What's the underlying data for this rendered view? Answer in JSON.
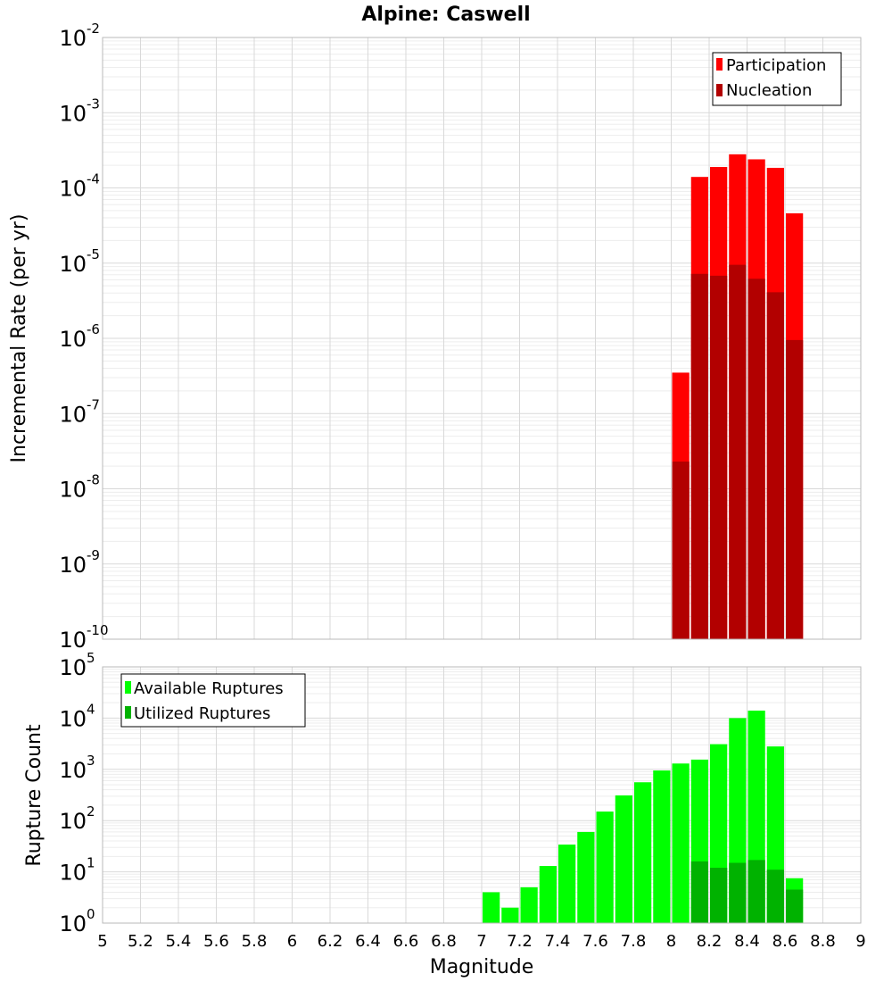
{
  "chart_data": [
    {
      "type": "bar",
      "title": "Alpine: Caswell",
      "xlabel": "Magnitude",
      "ylabel": "Incremental Rate (per yr)",
      "yscale": "log",
      "ylim_exponents": [
        -10,
        -2
      ],
      "xlim": [
        5,
        9
      ],
      "legend_position": "top-right",
      "x": [
        8.05,
        8.15,
        8.25,
        8.35,
        8.45,
        8.55,
        8.65
      ],
      "series": [
        {
          "name": "Participation",
          "color": "#ff0000",
          "values": [
            3.5e-07,
            0.00014,
            0.00019,
            0.00028,
            0.00024,
            0.000185,
            4.6e-05
          ]
        },
        {
          "name": "Nucleation",
          "color": "#b20000",
          "values": [
            2.3e-08,
            7.2e-06,
            6.8e-06,
            9.5e-06,
            6.2e-06,
            4.1e-06,
            9.5e-07
          ]
        }
      ]
    },
    {
      "type": "bar",
      "xlabel": "Magnitude",
      "ylabel": "Rupture Count",
      "yscale": "log",
      "ylim_exponents": [
        0,
        5
      ],
      "xlim": [
        5,
        9
      ],
      "legend_position": "top-left",
      "x": [
        6.95,
        7.05,
        7.15,
        7.25,
        7.35,
        7.45,
        7.55,
        7.65,
        7.75,
        7.85,
        7.95,
        8.05,
        8.15,
        8.25,
        8.35,
        8.45,
        8.55,
        8.65
      ],
      "series": [
        {
          "name": "Available Ruptures",
          "color": "#00ff00",
          "values": [
            1,
            4,
            2,
            5,
            13,
            34,
            60,
            150,
            310,
            560,
            950,
            1300,
            1550,
            3100,
            10000,
            14000,
            2800,
            7.5
          ]
        },
        {
          "name": "Utilized Ruptures",
          "color": "#00b200",
          "values": [
            null,
            null,
            null,
            null,
            null,
            null,
            null,
            null,
            null,
            null,
            null,
            1,
            16,
            12,
            15,
            17,
            11,
            4.5
          ]
        }
      ]
    }
  ],
  "x_ticks": [
    "5",
    "5.2",
    "5.4",
    "5.6",
    "5.8",
    "6",
    "6.2",
    "6.4",
    "6.6",
    "6.8",
    "7",
    "7.2",
    "7.4",
    "7.6",
    "7.8",
    "8",
    "8.2",
    "8.4",
    "8.6",
    "8.8",
    "9"
  ],
  "top_y_ticks": [
    {
      "base": "10",
      "exp": "-2"
    },
    {
      "base": "10",
      "exp": "-3"
    },
    {
      "base": "10",
      "exp": "-4"
    },
    {
      "base": "10",
      "exp": "-5"
    },
    {
      "base": "10",
      "exp": "-6"
    },
    {
      "base": "10",
      "exp": "-7"
    },
    {
      "base": "10",
      "exp": "-8"
    },
    {
      "base": "10",
      "exp": "-9"
    },
    {
      "base": "10",
      "exp": "-10"
    }
  ],
  "bottom_y_ticks": [
    {
      "base": "10",
      "exp": "5"
    },
    {
      "base": "10",
      "exp": "4"
    },
    {
      "base": "10",
      "exp": "3"
    },
    {
      "base": "10",
      "exp": "2"
    },
    {
      "base": "10",
      "exp": "1"
    },
    {
      "base": "10",
      "exp": "0"
    }
  ]
}
